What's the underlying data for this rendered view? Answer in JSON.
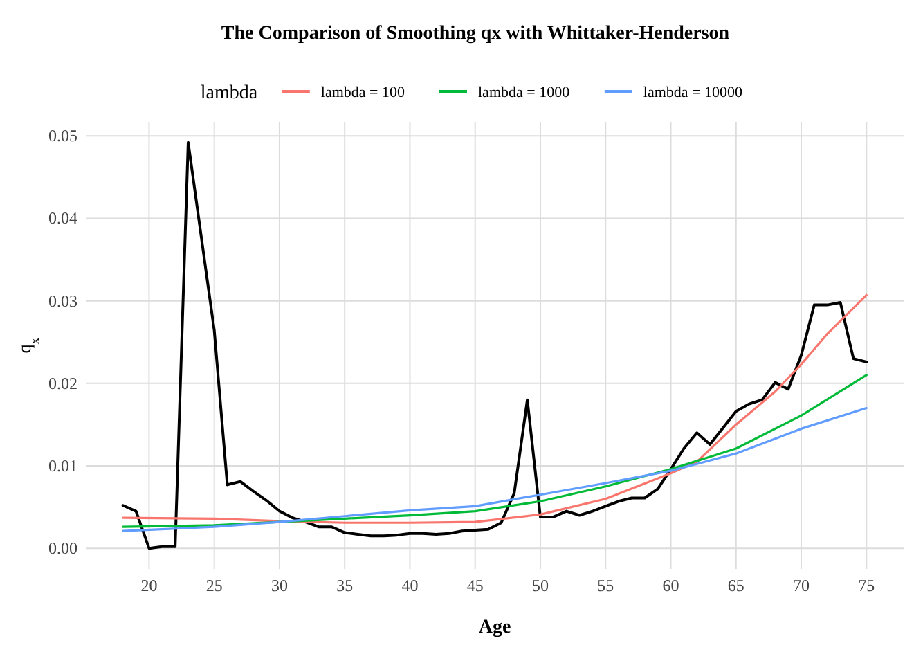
{
  "chart_data": {
    "type": "line",
    "title": "The Comparison of Smoothing qx with Whittaker-Henderson",
    "xlabel": "Age",
    "ylabel": "q$_{x}$",
    "legend_title": "lambda",
    "legend": "top",
    "grid": true,
    "line_style": "solid",
    "marker": "none",
    "xlim": [
      15.15,
      77.85
    ],
    "xticks": [
      20,
      25,
      30,
      35,
      40,
      45,
      50,
      55,
      60,
      65,
      70,
      75
    ],
    "ylim": [
      -0.0025,
      0.0517
    ],
    "yticks": [
      {
        "value": 0,
        "label": "0.00"
      },
      {
        "value": 0.01,
        "label": "0.01"
      },
      {
        "value": 0.02,
        "label": "0.02"
      },
      {
        "value": 0.03,
        "label": "0.03"
      },
      {
        "value": 0.04,
        "label": "0.04"
      },
      {
        "value": 0.05,
        "label": "0.05"
      }
    ],
    "series": [
      {
        "color": "#000000",
        "x": [
          18,
          19,
          20,
          21,
          22,
          23,
          24,
          25,
          26,
          27,
          28,
          29,
          30,
          31,
          32,
          33,
          34,
          35,
          36,
          37,
          38,
          39,
          40,
          41,
          42,
          43,
          44,
          45,
          46,
          47,
          48,
          49,
          50,
          51,
          52,
          53,
          54,
          55,
          56,
          57,
          58,
          59,
          60,
          61,
          62,
          63,
          64,
          65,
          66,
          67,
          68,
          69,
          70,
          71,
          72,
          73,
          74,
          75
        ],
        "values": [
          0.0052,
          0.0045,
          0.0,
          0.0002,
          0.0002,
          0.0492,
          0.0378,
          0.0264,
          0.0077,
          0.0081,
          0.0069,
          0.0058,
          0.0045,
          0.0037,
          0.0032,
          0.0026,
          0.0026,
          0.0019,
          0.0017,
          0.0015,
          0.0015,
          0.0016,
          0.0018,
          0.0018,
          0.0017,
          0.0018,
          0.0021,
          0.0022,
          0.0023,
          0.0031,
          0.0067,
          0.018,
          0.0038,
          0.0038,
          0.0045,
          0.004,
          0.0045,
          0.0051,
          0.0057,
          0.0061,
          0.0061,
          0.0072,
          0.0096,
          0.0121,
          0.014,
          0.0126,
          0.0146,
          0.0166,
          0.0175,
          0.018,
          0.0201,
          0.0193,
          0.0234,
          0.0295,
          0.0295,
          0.0298,
          0.023,
          0.0226
        ]
      },
      {
        "name": "lambda = 100",
        "color": "#f8766d",
        "x": [
          18,
          25,
          30,
          35,
          40,
          45,
          50,
          55,
          60,
          62,
          65,
          68,
          70,
          72,
          75
        ],
        "values": [
          0.0037,
          0.0036,
          0.0033,
          0.0031,
          0.0031,
          0.0032,
          0.0041,
          0.006,
          0.0091,
          0.0105,
          0.015,
          0.019,
          0.0223,
          0.026,
          0.0307
        ]
      },
      {
        "name": "lambda = 1000",
        "color": "#00ba38",
        "x": [
          18,
          25,
          30,
          35,
          40,
          45,
          50,
          55,
          60,
          65,
          70,
          75
        ],
        "values": [
          0.0026,
          0.0028,
          0.0032,
          0.0036,
          0.004,
          0.0045,
          0.0057,
          0.0075,
          0.0096,
          0.0121,
          0.0161,
          0.021
        ]
      },
      {
        "name": "lambda = 10000",
        "color": "#619cff",
        "x": [
          18,
          25,
          30,
          35,
          40,
          45,
          50,
          55,
          60,
          65,
          70,
          75
        ],
        "values": [
          0.0021,
          0.0026,
          0.0032,
          0.0039,
          0.0046,
          0.0051,
          0.0065,
          0.0079,
          0.0094,
          0.0115,
          0.0145,
          0.017
        ]
      }
    ]
  }
}
